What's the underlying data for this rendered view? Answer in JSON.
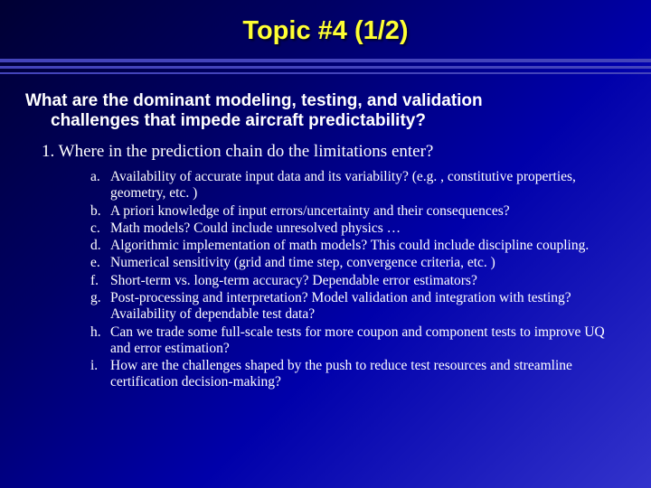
{
  "title": "Topic #4 (1/2)",
  "question_line1": "What are the dominant modeling, testing, and validation",
  "question_line2": "challenges that impede aircraft predictability?",
  "numbered": {
    "marker": "1.",
    "text": "Where in the prediction chain do the limitations enter?"
  },
  "subitems": [
    {
      "marker": "a.",
      "text": "Availability of accurate input data and its variability? (e.g. , constitutive properties, geometry, etc. )"
    },
    {
      "marker": "b.",
      "text": "A priori knowledge of input errors/uncertainty and their consequences?"
    },
    {
      "marker": "c.",
      "text": "Math models? Could include unresolved physics …"
    },
    {
      "marker": "d.",
      "text": "Algorithmic implementation of math models? This could include discipline coupling."
    },
    {
      "marker": "e.",
      "text": "Numerical sensitivity (grid and time step, convergence criteria, etc. )"
    },
    {
      "marker": "f.",
      "text": "Short-term vs. long-term accuracy? Dependable error estimators?"
    },
    {
      "marker": "g.",
      "text": "Post-processing and interpretation? Model validation and integration with testing? Availability of dependable test data?"
    },
    {
      "marker": "h.",
      "text": "Can we trade some full-scale tests for more coupon and component tests to improve UQ and error estimation?"
    },
    {
      "marker": "i.",
      "text": "How are the challenges shaped by the push to reduce test resources and streamline certification decision-making?"
    }
  ],
  "colors": {
    "title": "#ffff33",
    "body_text": "#ffffff",
    "rule": "#4444bb",
    "bg_start": "#000033",
    "bg_end": "#3333cc"
  },
  "fonts": {
    "title_family": "Comic Sans MS",
    "title_size_pt": 22,
    "question_family": "Tahoma",
    "question_size_pt": 15,
    "body_family": "Georgia",
    "numbered_size_pt": 15,
    "sub_size_pt": 12
  }
}
